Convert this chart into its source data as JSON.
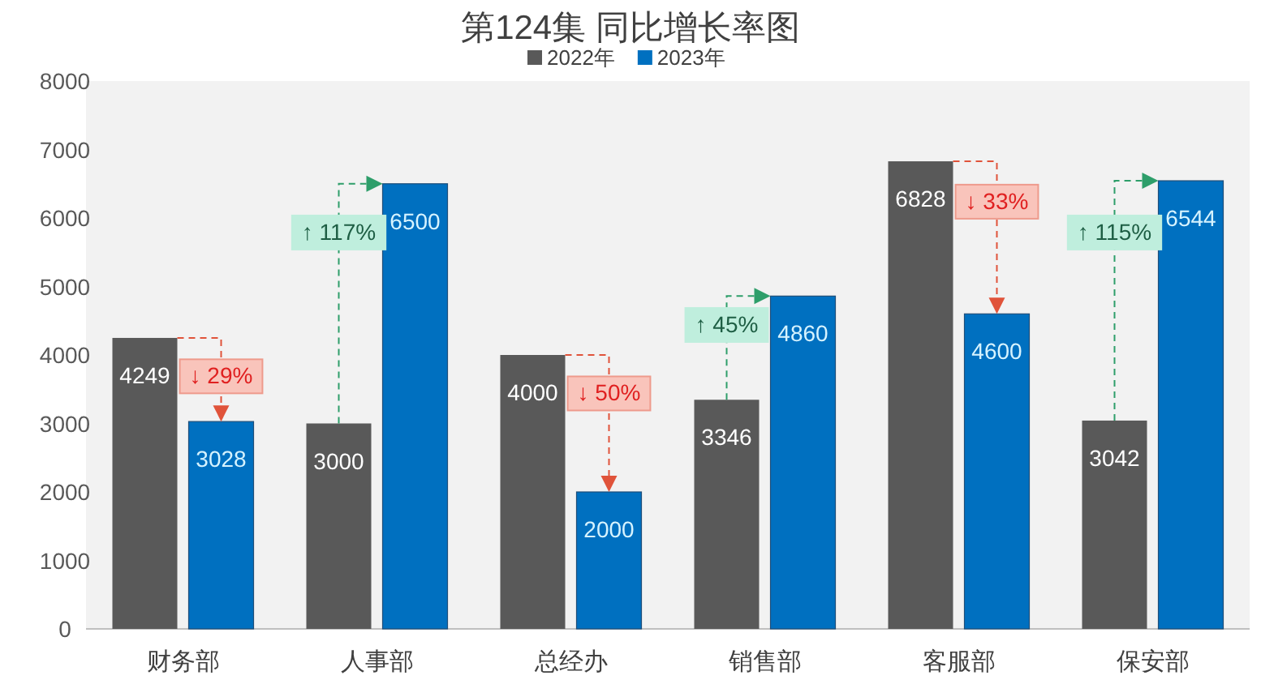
{
  "chart_data": {
    "type": "bar",
    "title": "第124集 同比增长率图",
    "categories": [
      "财务部",
      "人事部",
      "总经办",
      "销售部",
      "客服部",
      "保安部"
    ],
    "series": [
      {
        "name": "2022年",
        "color": "#595959",
        "values": [
          4249,
          3000,
          4000,
          3346,
          6828,
          3042
        ]
      },
      {
        "name": "2023年",
        "color": "#0070c0",
        "values": [
          3028,
          6500,
          2000,
          4860,
          4600,
          6544
        ]
      }
    ],
    "ylim": [
      0,
      8000
    ],
    "yticks": [
      0,
      1000,
      2000,
      3000,
      4000,
      5000,
      6000,
      7000,
      8000
    ],
    "grid": false,
    "data_labels": true,
    "legend": "top",
    "annotations": [
      {
        "text": "↓ 29%",
        "x": "财务部",
        "y": 3700
      },
      {
        "text": "↑ 117%",
        "x": "人事部",
        "y": 5800
      },
      {
        "text": "↓ 50%",
        "x": "总经办",
        "y": 3450
      },
      {
        "text": "↑ 45%",
        "x": "销售部",
        "y": 4450
      },
      {
        "text": "↓ 33%",
        "x": "客服部",
        "y": 6250
      },
      {
        "text": "↑ 115%",
        "x": "保安部",
        "y": 5800
      }
    ]
  }
}
